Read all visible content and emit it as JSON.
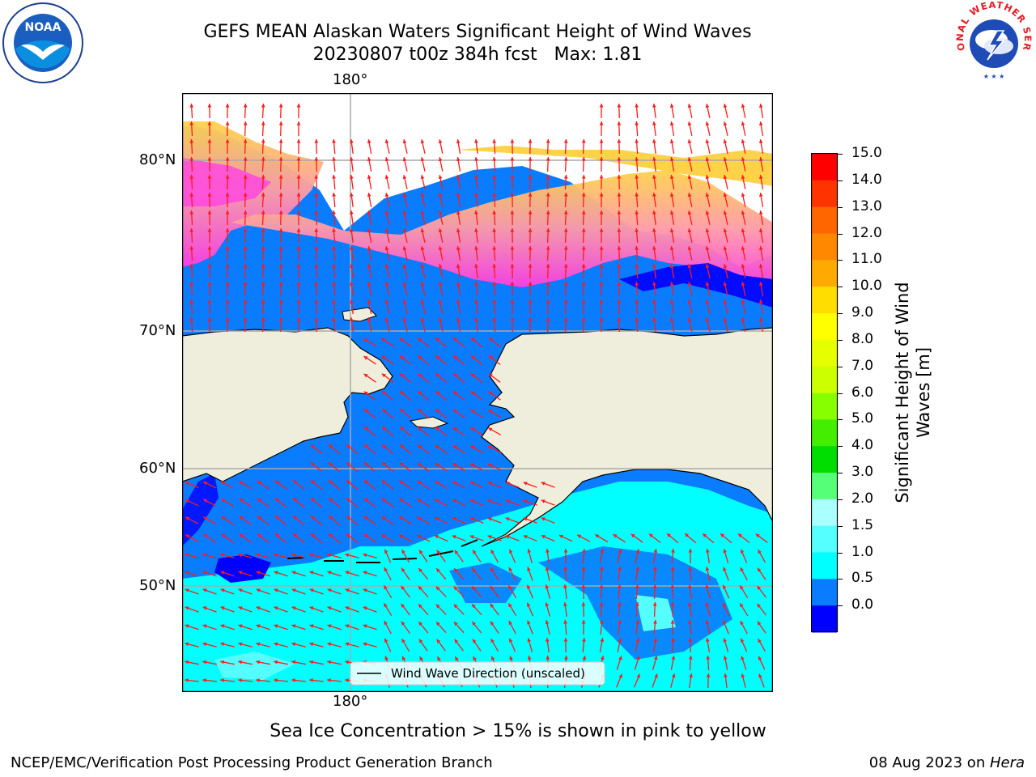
{
  "title": {
    "line1": "GEFS MEAN Alaskan Waters Significant Height of Wind Waves",
    "line2": "20230807 t00z 384h fcst   Max: 1.81"
  },
  "map": {
    "lon_label_top": "180°",
    "lon_label_bottom": "180°",
    "lat_labels": [
      "80°N",
      "70°N",
      "60°N",
      "50°N"
    ],
    "legend_label": "Wind Wave Direction (unscaled)",
    "ocean_color": "#0a7cff",
    "land_color": "#efeedc",
    "arrow_color": "#ff1a1a"
  },
  "colorbar": {
    "title_line1": "Significant Height of Wind",
    "title_line2": "Waves [m]",
    "ticks": [
      "15.0",
      "14.0",
      "13.0",
      "12.0",
      "11.0",
      "10.0",
      "9.0",
      "8.0",
      "7.0",
      "6.0",
      "5.0",
      "4.0",
      "3.0",
      "2.0",
      "1.5",
      "1.0",
      "0.5",
      "0.0"
    ],
    "colors_top_to_bottom": [
      "#ff0000",
      "#ff3300",
      "#ff6600",
      "#ff8800",
      "#ffaa00",
      "#ffdd00",
      "#ffff00",
      "#e5ff00",
      "#ccff00",
      "#88ff00",
      "#44ee00",
      "#00dd00",
      "#55ff77",
      "#aaffff",
      "#55ffff",
      "#00ffff",
      "#0a7cff",
      "#0000ff"
    ]
  },
  "note": "Sea Ice Concentration > 15% is shown in pink to yellow",
  "footer": {
    "left": "NCEP/EMC/Verification Post Processing Product Generation Branch",
    "date": "08 Aug 2023 on ",
    "host": "Hera"
  },
  "logos": {
    "noaa_text": "NOAA",
    "nws_text": "NATIONAL WEATHER SERVICE"
  }
}
